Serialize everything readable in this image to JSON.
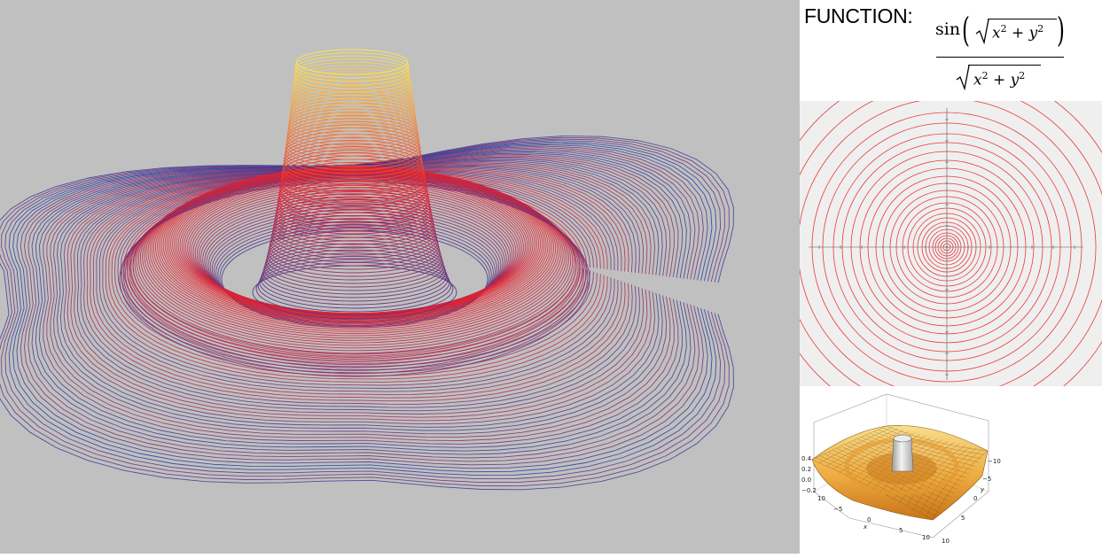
{
  "header": {
    "label": "FUNCTION:",
    "formula": {
      "func": "sin",
      "radicand": "x² + y²"
    }
  },
  "plots": {
    "main_wireframe": {
      "colors": [
        "#2b3a9e",
        "#e8232e",
        "#ffe84a"
      ]
    },
    "contour": {
      "ring_color": "#e83a3a",
      "axis_color": "#555555"
    },
    "surface": {
      "ztick_labels": [
        "0.4",
        "0.2",
        "0.0",
        "−0.2"
      ],
      "xtick_labels": [
        "10",
        "−5",
        "0",
        "5",
        "10"
      ],
      "ytick_labels": [
        "−10",
        "−5",
        "0",
        "5",
        "10"
      ],
      "xlabel": "x",
      "ylabel": "y",
      "colors": {
        "top": "#f5d37a",
        "base": "#d98a1f",
        "peak": "#d8d8d8"
      }
    }
  }
}
